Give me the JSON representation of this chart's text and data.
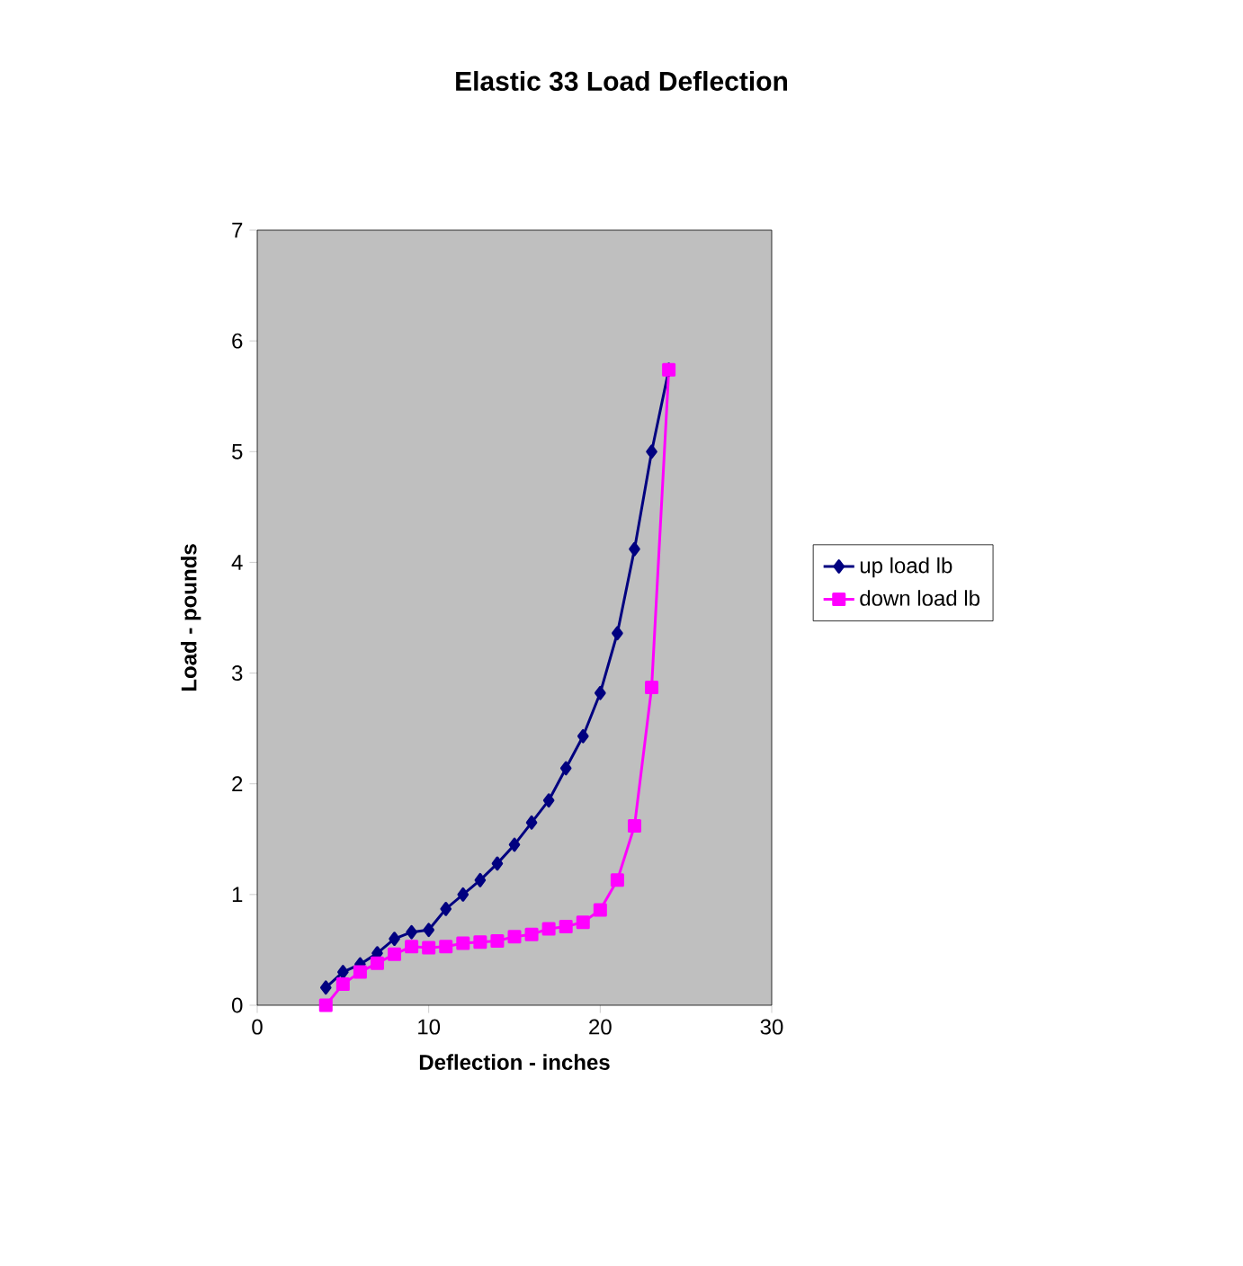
{
  "chart_data": {
    "type": "line",
    "title": "Elastic 33 Load Deflection",
    "xlabel": "Deflection - inches",
    "ylabel": "Load - pounds",
    "x": [
      4,
      5,
      6,
      7,
      8,
      9,
      10,
      11,
      12,
      13,
      14,
      15,
      16,
      17,
      18,
      19,
      20,
      21,
      22,
      23,
      24
    ],
    "series": [
      {
        "name": "up load lb",
        "color": "#000080",
        "marker": "diamond",
        "values": [
          0.16,
          0.3,
          0.37,
          0.47,
          0.6,
          0.66,
          0.68,
          0.87,
          1.0,
          1.13,
          1.28,
          1.45,
          1.65,
          1.85,
          2.14,
          2.43,
          2.82,
          3.36,
          4.12,
          5.0,
          5.74
        ]
      },
      {
        "name": "down load lb",
        "color": "#ff00ff",
        "marker": "square",
        "values": [
          0.0,
          0.19,
          0.3,
          0.38,
          0.46,
          0.53,
          0.52,
          0.53,
          0.56,
          0.57,
          0.58,
          0.62,
          0.64,
          0.69,
          0.71,
          0.75,
          0.86,
          1.13,
          1.62,
          2.87,
          5.74
        ]
      }
    ],
    "xlim": [
      0,
      30
    ],
    "xticks": [
      0,
      10,
      20,
      30
    ],
    "ylim": [
      0,
      7
    ],
    "yticks": [
      0,
      1,
      2,
      3,
      4,
      5,
      6,
      7
    ],
    "grid": false,
    "legend": "right",
    "line_style": "solid"
  }
}
